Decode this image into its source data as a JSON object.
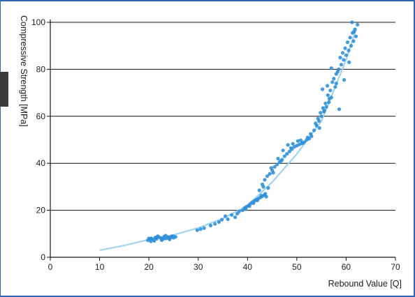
{
  "chart_data": {
    "type": "scatter",
    "title": "",
    "xlabel": "Rebound Value [Q]",
    "ylabel": "Compressive Strength [MPa]",
    "xlim": [
      0,
      70
    ],
    "ylim": [
      0,
      100
    ],
    "x_ticks": [
      "0",
      "10",
      "20",
      "30",
      "40",
      "50",
      "60",
      "70"
    ],
    "y_ticks": [
      "0",
      "20",
      "40",
      "60",
      "80",
      "100"
    ],
    "grid": "horizontal",
    "legend": "none",
    "colors": {
      "points": "#2f8fd8",
      "trend": "#9fd3f0",
      "grid": "#111111",
      "frame": "#2f66b3",
      "highlight_tick": "#2f66b3"
    },
    "trend_curve": {
      "x": [
        10,
        15,
        20,
        25,
        30,
        35,
        40,
        45,
        50,
        55,
        60,
        62
      ],
      "y": [
        3,
        5,
        7.5,
        9.5,
        12.5,
        16.5,
        22,
        32,
        44,
        58,
        84,
        97
      ]
    },
    "series": [
      {
        "x": [
          19.8,
          20.2,
          20.5,
          20.9,
          21.3,
          21.6,
          22.0,
          22.4,
          22.7,
          23.1,
          23.5,
          23.9,
          24.2,
          24.6,
          25.0,
          25.4,
          20.4,
          21.1,
          21.8,
          22.6,
          23.4,
          24.1,
          24.9,
          20.0,
          21.5,
          23.0,
          24.5,
          29.8,
          30.5,
          31.2,
          32.5,
          33.4,
          34.2,
          34.8,
          35.5,
          36.0,
          36.8,
          37.5,
          37.9,
          38.3,
          39.0,
          39.4,
          39.8,
          40.2,
          40.6,
          41.0,
          41.4,
          41.8,
          42.2,
          42.6,
          43.0,
          43.4,
          43.8,
          39.6,
          40.4,
          41.2,
          42.0,
          42.8,
          43.6,
          43.0,
          43.5,
          44.0,
          44.5,
          45.0,
          45.5,
          46.0,
          46.5,
          47.0,
          47.5,
          48.0,
          48.5,
          49.0,
          49.5,
          50.0,
          50.5,
          51.0,
          51.5,
          52.0,
          52.5,
          53.0,
          44.2,
          45.2,
          46.2,
          47.2,
          48.2,
          49.2,
          50.2,
          51.2,
          52.2,
          42.4,
          43.2,
          44.8,
          46.8,
          48.8,
          50.8,
          52.8,
          53.5,
          54.0,
          54.5,
          55.0,
          55.5,
          56.0,
          56.5,
          57.0,
          53.8,
          54.3,
          54.8,
          55.3,
          55.8,
          56.3,
          56.8,
          54.6,
          55.6,
          56.6,
          55.2,
          56.2,
          57.2,
          57.5,
          58.0,
          58.5,
          59.0,
          59.5,
          60.0,
          60.5,
          61.0,
          61.5,
          62.0,
          57.8,
          58.3,
          58.8,
          59.3,
          59.8,
          60.3,
          60.8,
          61.3,
          61.8,
          58.6,
          59.6,
          60.6,
          61.6,
          62.3,
          61.2,
          57.0,
          58.0
        ],
        "y": [
          7.2,
          7.8,
          8.1,
          7.5,
          8.4,
          7.9,
          8.6,
          8.2,
          7.7,
          8.8,
          8.0,
          8.5,
          7.6,
          8.9,
          8.3,
          8.7,
          6.8,
          7.0,
          9.0,
          7.3,
          9.2,
          8.1,
          9.0,
          8.0,
          8.4,
          7.9,
          8.6,
          11.5,
          12.0,
          12.4,
          13.5,
          14.2,
          15.0,
          16.0,
          17.5,
          16.2,
          18.0,
          17.0,
          18.5,
          19.5,
          20.0,
          21.0,
          21.5,
          22.0,
          22.8,
          23.5,
          24.0,
          24.5,
          25.0,
          25.5,
          26.0,
          26.5,
          25.8,
          20.5,
          21.8,
          23.0,
          24.2,
          26.2,
          27.0,
          31.0,
          33.0,
          34.5,
          35.5,
          37.0,
          38.5,
          39.5,
          40.5,
          41.5,
          43.0,
          44.0,
          45.0,
          46.0,
          47.0,
          47.5,
          48.0,
          48.5,
          49.0,
          50.0,
          50.5,
          51.5,
          29.5,
          36.0,
          42.0,
          45.5,
          47.8,
          48.3,
          49.5,
          48.6,
          51.0,
          28.5,
          30.0,
          38.0,
          41.0,
          46.5,
          49.8,
          52.5,
          54.0,
          56.0,
          58.0,
          60.0,
          62.0,
          64.0,
          66.0,
          68.0,
          57.0,
          59.0,
          61.5,
          63.5,
          65.5,
          69.0,
          71.0,
          55.0,
          62.5,
          67.5,
          71.5,
          73.0,
          74.5,
          76.0,
          78.0,
          80.0,
          82.0,
          84.0,
          86.0,
          88.0,
          90.0,
          92.0,
          94.0,
          72.5,
          79.0,
          85.0,
          87.0,
          89.0,
          91.5,
          93.5,
          95.5,
          97.0,
          63.0,
          75.5,
          83.0,
          96.0,
          99.0,
          100.0,
          80.5,
          74.0
        ]
      }
    ]
  }
}
